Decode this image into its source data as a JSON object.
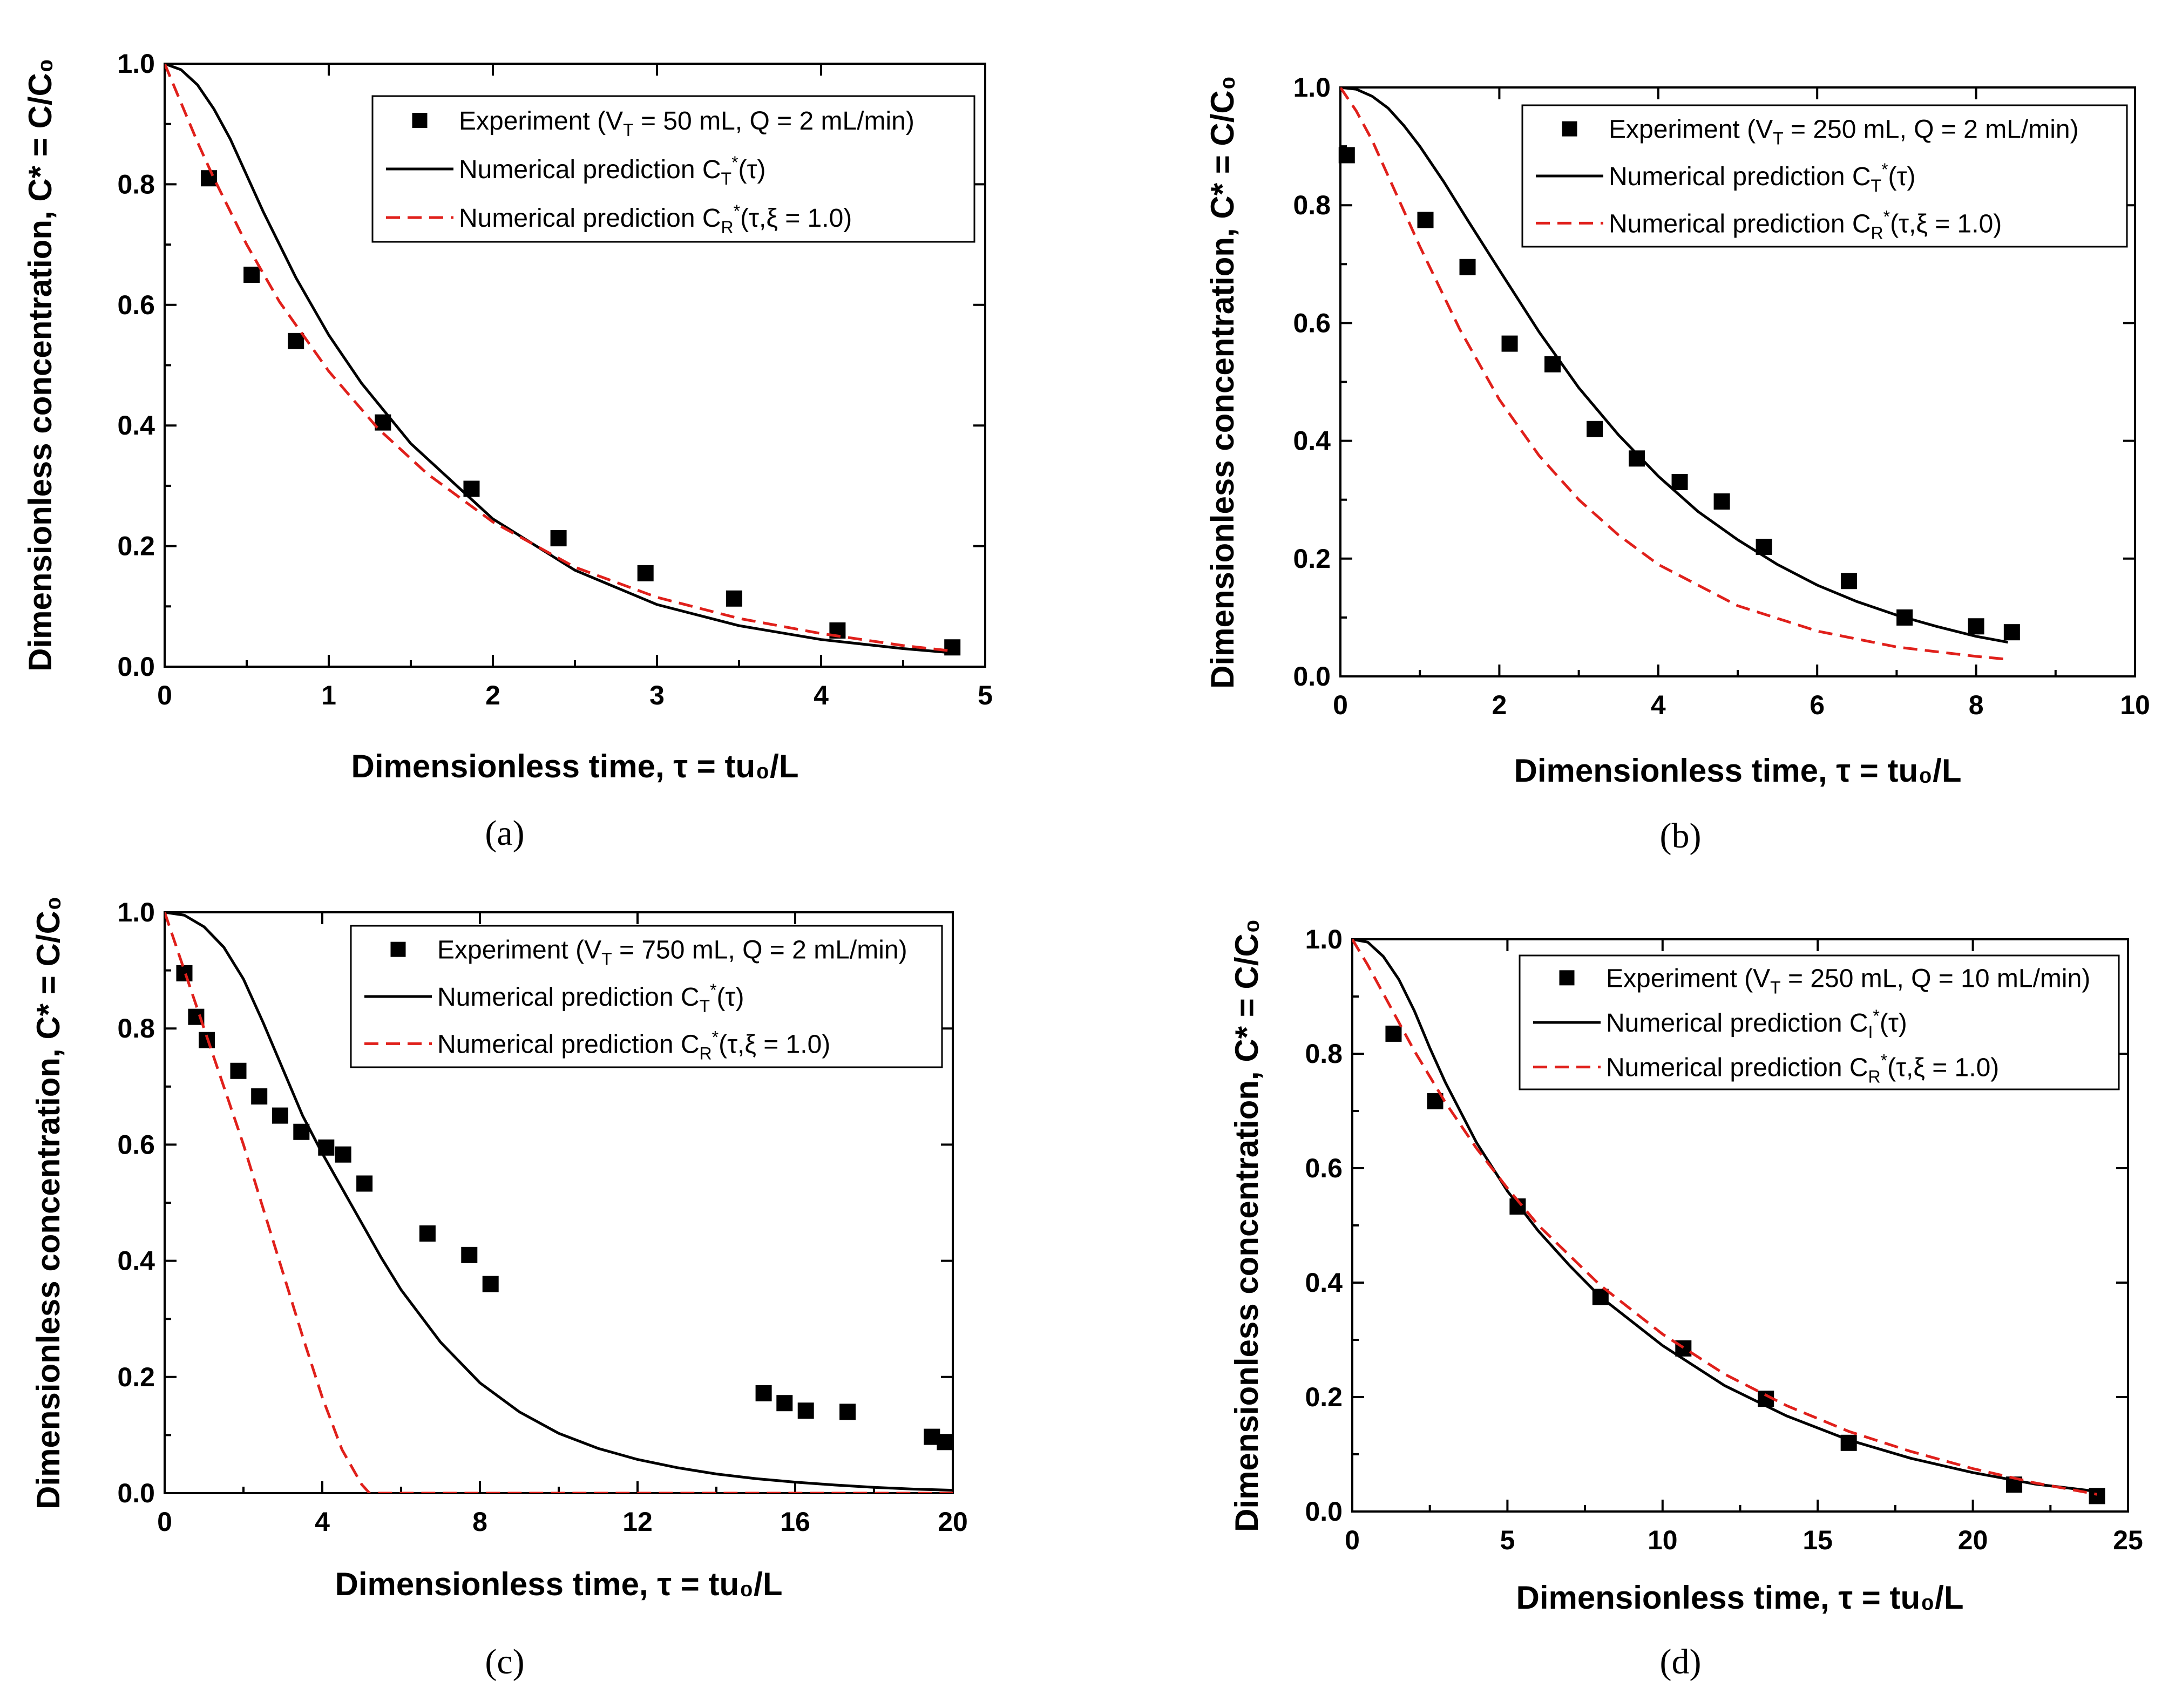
{
  "chart_data": [
    {
      "type": "scatter",
      "panel_label": "(a)",
      "xlabel": "Dimensionless time, τ = tu₀/L",
      "ylabel": "Dimensionless concentration, C* = C/C₀",
      "xlim": [
        0,
        5
      ],
      "ylim": [
        0,
        1.0
      ],
      "xticks": [
        0,
        1,
        2,
        3,
        4,
        5
      ],
      "xtick_labels": [
        "0",
        "1",
        "2",
        "3",
        "4",
        "5"
      ],
      "yticks": [
        0,
        0.2,
        0.4,
        0.6,
        0.8,
        1.0
      ],
      "ytick_labels": [
        "0.0",
        "0.2",
        "0.4",
        "0.6",
        "0.8",
        "1.0"
      ],
      "legend_position": "top-right",
      "series": [
        {
          "name": "Experiment (V_T = 50 mL, Q = 2 mL/min)",
          "legend_label": "Experiment (V_T = 50 mL, Q = 2 mL/min)",
          "kind": "markers",
          "color": "#000000",
          "x": [
            0.27,
            0.53,
            0.8,
            1.33,
            1.87,
            2.4,
            2.93,
            3.47,
            4.1,
            4.8
          ],
          "y": [
            0.81,
            0.65,
            0.54,
            0.405,
            0.295,
            0.213,
            0.155,
            0.113,
            0.06,
            0.032
          ]
        },
        {
          "name": "Numerical prediction C_T*(τ)",
          "legend_label": "Numerical prediction C_T*(τ)",
          "kind": "solid",
          "color": "#000000",
          "x": [
            0,
            0.1,
            0.2,
            0.3,
            0.4,
            0.5,
            0.6,
            0.8,
            1.0,
            1.2,
            1.5,
            2.0,
            2.5,
            3.0,
            3.5,
            4.0,
            4.5,
            4.8
          ],
          "y": [
            1.0,
            0.99,
            0.965,
            0.925,
            0.875,
            0.815,
            0.755,
            0.645,
            0.55,
            0.47,
            0.37,
            0.245,
            0.16,
            0.103,
            0.068,
            0.045,
            0.03,
            0.023
          ]
        },
        {
          "name": "Numerical prediction C_R*(τ,ξ = 1.0)",
          "legend_label": "Numerical prediction C_R*(τ,ξ = 1.0)",
          "kind": "dashed",
          "color": "#e0201b",
          "x": [
            0,
            0.1,
            0.2,
            0.3,
            0.5,
            0.7,
            1.0,
            1.3,
            1.6,
            2.0,
            2.5,
            3.0,
            3.5,
            4.0,
            4.5,
            4.8
          ],
          "y": [
            1.0,
            0.935,
            0.87,
            0.81,
            0.7,
            0.605,
            0.49,
            0.395,
            0.32,
            0.24,
            0.165,
            0.115,
            0.08,
            0.055,
            0.035,
            0.026
          ]
        }
      ]
    },
    {
      "type": "scatter",
      "panel_label": "(b)",
      "xlabel": "Dimensionless time, τ = tu₀/L",
      "ylabel": "Dimensionless concentration, C* = C/C₀",
      "xlim": [
        0,
        10
      ],
      "ylim": [
        0,
        1.0
      ],
      "xticks": [
        0,
        2,
        4,
        6,
        8,
        10
      ],
      "xtick_labels": [
        "0",
        "2",
        "4",
        "6",
        "8",
        "10"
      ],
      "yticks": [
        0,
        0.2,
        0.4,
        0.6,
        0.8,
        1.0
      ],
      "ytick_labels": [
        "0.0",
        "0.2",
        "0.4",
        "0.6",
        "0.8",
        "1.0"
      ],
      "legend_position": "top-right",
      "series": [
        {
          "name": "Experiment (V_T = 250 mL, Q = 2 mL/min)",
          "legend_label": "Experiment (V_T = 250 mL, Q = 2 mL/min)",
          "kind": "markers",
          "color": "#000000",
          "x": [
            0.08,
            1.07,
            1.6,
            2.13,
            2.67,
            3.2,
            3.73,
            4.27,
            4.8,
            5.33,
            6.4,
            7.1,
            8.0,
            8.45
          ],
          "y": [
            0.885,
            0.775,
            0.695,
            0.565,
            0.53,
            0.42,
            0.37,
            0.33,
            0.297,
            0.22,
            0.162,
            0.1,
            0.085,
            0.075
          ]
        },
        {
          "name": "Numerical prediction C_T*(τ)",
          "legend_label": "Numerical prediction C_T*(τ)",
          "kind": "solid",
          "color": "#000000",
          "x": [
            0,
            0.2,
            0.4,
            0.6,
            0.8,
            1.0,
            1.3,
            1.6,
            2.0,
            2.5,
            3.0,
            3.5,
            4.0,
            4.5,
            5.0,
            5.5,
            6.0,
            6.5,
            7.0,
            7.5,
            8.0,
            8.4
          ],
          "y": [
            1.0,
            0.997,
            0.985,
            0.965,
            0.935,
            0.9,
            0.84,
            0.775,
            0.69,
            0.585,
            0.49,
            0.41,
            0.34,
            0.28,
            0.232,
            0.19,
            0.155,
            0.127,
            0.104,
            0.085,
            0.068,
            0.058
          ]
        },
        {
          "name": "Numerical prediction C_R*(τ,ξ = 1.0)",
          "legend_label": "Numerical prediction C_R*(τ,ξ = 1.0)",
          "kind": "dashed",
          "color": "#e0201b",
          "x": [
            0,
            0.2,
            0.4,
            0.6,
            0.8,
            1.0,
            1.5,
            2.0,
            2.5,
            3.0,
            3.5,
            4.0,
            5.0,
            6.0,
            7.0,
            8.0,
            8.4
          ],
          "y": [
            1.0,
            0.96,
            0.91,
            0.85,
            0.79,
            0.73,
            0.59,
            0.47,
            0.375,
            0.3,
            0.24,
            0.19,
            0.12,
            0.077,
            0.05,
            0.034,
            0.029
          ]
        }
      ]
    },
    {
      "type": "scatter",
      "panel_label": "(c)",
      "xlabel": "Dimensionless time, τ = tu₀/L",
      "ylabel": "Dimensionless concentration, C* = C/C₀",
      "xlim": [
        0,
        20
      ],
      "ylim": [
        0,
        1.0
      ],
      "xticks": [
        0,
        4,
        8,
        12,
        16,
        20
      ],
      "xtick_labels": [
        "0",
        "4",
        "8",
        "12",
        "16",
        "20"
      ],
      "yticks": [
        0,
        0.2,
        0.4,
        0.6,
        0.8,
        1.0
      ],
      "ytick_labels": [
        "0.0",
        "0.2",
        "0.4",
        "0.6",
        "0.8",
        "1.0"
      ],
      "legend_position": "top-right",
      "series": [
        {
          "name": "Experiment (V_T = 750 mL, Q = 2 mL/min)",
          "legend_label": "Experiment (V_T = 750 mL, Q = 2 mL/min)",
          "kind": "markers",
          "color": "#000000",
          "x": [
            0.5,
            0.8,
            1.07,
            1.87,
            2.4,
            2.93,
            3.47,
            4.1,
            4.53,
            5.07,
            6.67,
            7.73,
            8.27,
            15.2,
            15.73,
            16.27,
            17.33,
            19.47,
            19.8
          ],
          "y": [
            0.895,
            0.82,
            0.78,
            0.727,
            0.683,
            0.65,
            0.622,
            0.595,
            0.583,
            0.533,
            0.447,
            0.41,
            0.36,
            0.172,
            0.155,
            0.142,
            0.14,
            0.097,
            0.088
          ]
        },
        {
          "name": "Numerical prediction C_T*(τ)",
          "legend_label": "Numerical prediction C_T*(τ)",
          "kind": "solid",
          "color": "#000000",
          "x": [
            0,
            0.5,
            1.0,
            1.5,
            2.0,
            2.5,
            3.0,
            3.5,
            4.0,
            4.5,
            5.0,
            5.5,
            6.0,
            7.0,
            8.0,
            9.0,
            10.0,
            11.0,
            12.0,
            13.0,
            14.0,
            15.0,
            16.0,
            17.0,
            18.0,
            19.0,
            20.0
          ],
          "y": [
            1.0,
            0.995,
            0.975,
            0.94,
            0.885,
            0.81,
            0.73,
            0.65,
            0.585,
            0.525,
            0.465,
            0.405,
            0.35,
            0.26,
            0.19,
            0.14,
            0.103,
            0.077,
            0.058,
            0.044,
            0.033,
            0.025,
            0.019,
            0.014,
            0.01,
            0.007,
            0.005
          ]
        },
        {
          "name": "Numerical prediction C_R*(τ,ξ = 1.0)",
          "legend_label": "Numerical prediction C_R*(τ,ξ = 1.0)",
          "kind": "dashed",
          "color": "#e0201b",
          "x": [
            0,
            0.5,
            1.0,
            1.5,
            2.0,
            2.5,
            3.0,
            3.5,
            4.0,
            4.5,
            5.0,
            5.2,
            6.0,
            8.0,
            12.0,
            16.0,
            20.0
          ],
          "y": [
            1.0,
            0.9,
            0.8,
            0.7,
            0.6,
            0.49,
            0.38,
            0.27,
            0.165,
            0.075,
            0.015,
            0.0,
            0.0,
            0.0,
            0.0,
            0.0,
            0.0
          ]
        }
      ]
    },
    {
      "type": "scatter",
      "panel_label": "(d)",
      "xlabel": "Dimensionless time, τ = tu₀/L",
      "ylabel": "Dimensionless concentration, C* = C/C₀",
      "xlim": [
        0,
        25
      ],
      "ylim": [
        0,
        1.0
      ],
      "xticks": [
        0,
        5,
        10,
        15,
        20,
        25
      ],
      "xtick_labels": [
        "0",
        "5",
        "10",
        "15",
        "20",
        "25"
      ],
      "yticks": [
        0,
        0.2,
        0.4,
        0.6,
        0.8,
        1.0
      ],
      "ytick_labels": [
        "0.0",
        "0.2",
        "0.4",
        "0.6",
        "0.8",
        "1.0"
      ],
      "legend_position": "top-right",
      "series": [
        {
          "name": "Experiment (V_T = 250 mL, Q = 10 mL/min)",
          "legend_label": "Experiment (V_T = 250 mL, Q = 10 mL/min)",
          "kind": "markers",
          "color": "#000000",
          "x": [
            1.33,
            2.67,
            5.33,
            8.0,
            10.67,
            13.33,
            16.0,
            21.33,
            24.0
          ],
          "y": [
            0.835,
            0.717,
            0.533,
            0.375,
            0.285,
            0.197,
            0.12,
            0.047,
            0.027
          ]
        },
        {
          "name": "Numerical prediction C_I*(τ)",
          "legend_label": "Numerical prediction C_I*(τ)",
          "kind": "solid",
          "color": "#000000",
          "x": [
            0,
            0.5,
            1.0,
            1.5,
            2.0,
            2.5,
            3.0,
            4.0,
            5.0,
            6.0,
            7.0,
            8.0,
            10.0,
            12.0,
            14.0,
            16.0,
            18.0,
            20.0,
            22.0,
            24.0
          ],
          "y": [
            1.0,
            0.995,
            0.97,
            0.93,
            0.875,
            0.81,
            0.75,
            0.645,
            0.56,
            0.49,
            0.43,
            0.375,
            0.29,
            0.22,
            0.167,
            0.125,
            0.093,
            0.068,
            0.048,
            0.035
          ]
        },
        {
          "name": "Numerical prediction C_R*(τ,ξ = 1.0)",
          "legend_label": "Numerical prediction C_R*(τ,ξ = 1.0)",
          "kind": "dashed",
          "color": "#e0201b",
          "x": [
            0,
            0.5,
            1.0,
            1.5,
            2.0,
            3.0,
            4.0,
            5.0,
            6.0,
            8.0,
            10.0,
            12.0,
            14.0,
            16.0,
            18.0,
            20.0,
            22.0,
            24.0
          ],
          "y": [
            1.0,
            0.955,
            0.905,
            0.855,
            0.805,
            0.715,
            0.635,
            0.565,
            0.5,
            0.395,
            0.31,
            0.24,
            0.185,
            0.14,
            0.105,
            0.075,
            0.05,
            0.03
          ]
        }
      ]
    }
  ]
}
